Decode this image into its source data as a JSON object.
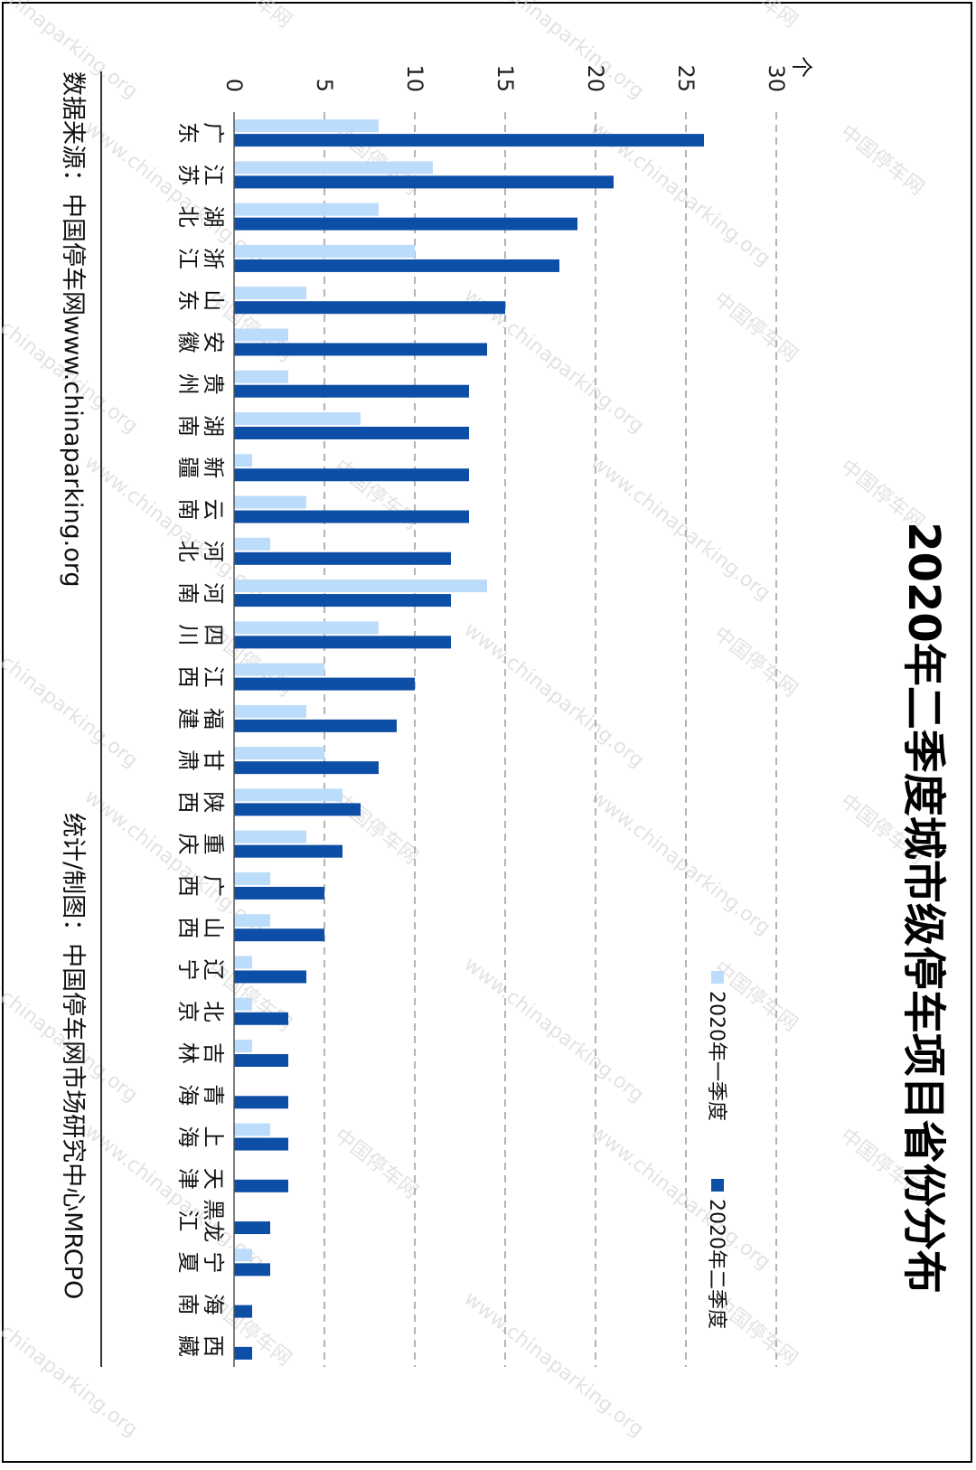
{
  "chart_data": {
    "type": "bar",
    "title": "2020年二季度城市级停车项目省份分布",
    "ylabel": "个",
    "ylim": [
      0,
      30
    ],
    "yticks": [
      0,
      5,
      10,
      15,
      20,
      25,
      30
    ],
    "grid": true,
    "legend_position": "top-right",
    "categories": [
      "广东",
      "江苏",
      "湖北",
      "浙江",
      "山东",
      "安徽",
      "贵州",
      "湖南",
      "新疆",
      "云南",
      "河北",
      "河南",
      "四川",
      "江西",
      "福建",
      "甘肃",
      "陕西",
      "重庆",
      "广西",
      "山西",
      "辽宁",
      "北京",
      "吉林",
      "青海",
      "上海",
      "天津",
      "黑龙江",
      "宁夏",
      "海南",
      "西藏"
    ],
    "series": [
      {
        "name": "2020年一季度",
        "color": "#bcdcfb",
        "values": [
          8,
          11,
          8,
          10,
          4,
          3,
          3,
          7,
          1,
          4,
          2,
          14,
          8,
          5,
          4,
          5,
          6,
          4,
          2,
          2,
          1,
          1,
          1,
          0,
          2,
          0,
          0,
          1,
          0,
          0
        ]
      },
      {
        "name": "2020年二季度",
        "color": "#0d4ea6",
        "values": [
          26,
          21,
          19,
          18,
          15,
          14,
          13,
          13,
          13,
          13,
          12,
          12,
          12,
          10,
          9,
          8,
          7,
          6,
          5,
          5,
          4,
          3,
          3,
          3,
          3,
          3,
          2,
          2,
          1,
          1
        ]
      }
    ]
  },
  "footer": {
    "source": "数据来源：中国停车网www.chinaparking.org",
    "credit": "统计/制图：中国停车网市场研究中心MRCPO"
  },
  "watermark": {
    "site": "www.chinaparking.org",
    "cn": "中国停车网"
  }
}
